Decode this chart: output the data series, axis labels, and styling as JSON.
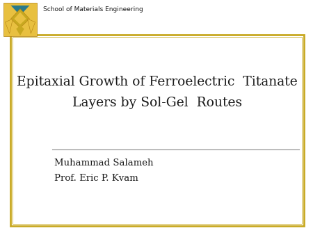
{
  "bg_color": "#f0efe8",
  "title_line1": "Epitaxial Growth of Ferroelectric  Titanate",
  "title_line2": "Layers by Sol-Gel  Routes",
  "author1": "Muhammad Salameh",
  "author2": "Prof. Eric P. Kvam",
  "school_text": "School of Materials Engineering",
  "title_fontsize": 13.5,
  "author_fontsize": 9.5,
  "school_fontsize": 6.5,
  "text_color": "#1a1a1a",
  "box_edge_color": "#c8a820",
  "white": "#ffffff",
  "line_color": "#888888",
  "logo_yellow": "#e8c040",
  "logo_dark": "#c8a820",
  "logo_teal": "#2a7a8a",
  "logo_outline": "#b08010"
}
